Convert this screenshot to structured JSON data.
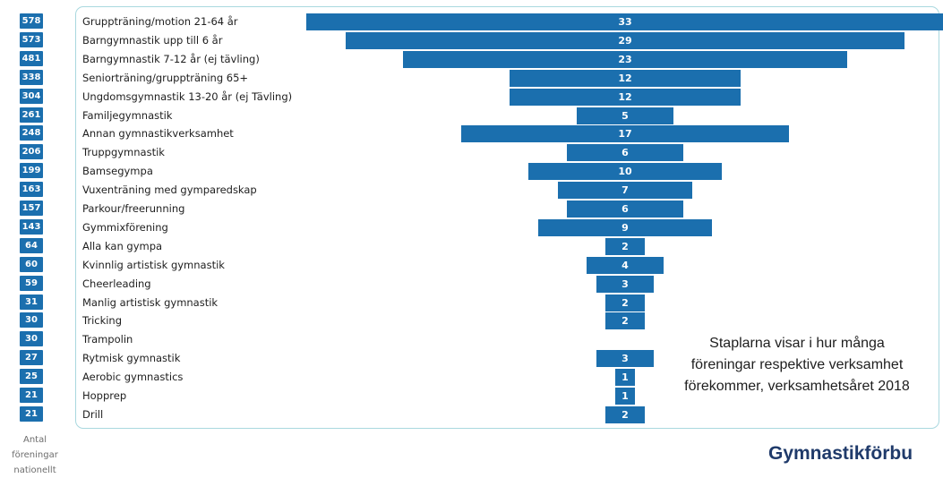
{
  "chart_data": {
    "type": "bar",
    "categories": [
      "Gruppträning/motion 21-64 år",
      "Barngymnastik upp till 6 år",
      "Barngymnastik 7-12 år (ej tävling)",
      "Seniorträning/gruppträning 65+",
      "Ungdomsgymnastik 13-20 år (ej Tävling)",
      "Familjegymnastik",
      "Annan gymnastikverksamhet",
      "Truppgymnastik",
      "Bamsegympa",
      "Vuxenträning med gymparedskap",
      "Parkour/freerunning",
      "Gymmixförening",
      "Alla kan gympa",
      "Kvinnlig artistisk gymnastik",
      "Cheerleading",
      "Manlig artistisk gymnastik",
      "Tricking",
      "Trampolin",
      "Rytmisk gymnastik",
      "Aerobic gymnastics",
      "Hopprep",
      "Drill"
    ],
    "values": [
      33,
      29,
      23,
      12,
      12,
      5,
      17,
      6,
      10,
      7,
      6,
      9,
      2,
      4,
      3,
      2,
      2,
      null,
      3,
      1,
      1,
      2
    ],
    "national_counts": [
      "578",
      "573",
      "481",
      "338",
      "304",
      "261",
      "248",
      "206",
      "199",
      "163",
      "157",
      "143",
      "64",
      "60",
      "59",
      "31",
      "30",
      "30",
      "27",
      "25",
      "21",
      "21"
    ],
    "value_labels": [
      "33",
      "29",
      "23",
      "12",
      "12",
      "5",
      "17",
      "6",
      "10",
      "7",
      "6",
      "9",
      "2",
      "4",
      "3",
      "2",
      "2",
      "",
      "3",
      "1",
      "1",
      "2"
    ],
    "title": "",
    "xlabel": "",
    "ylabel": "",
    "orientation": "horizontal-centered",
    "bar_color": "#1b6fae"
  },
  "caption": "Staplarna visar i hur många föreningar respektive verksamhet förekommer, verksamhetsåret 2018",
  "counts_label": "Antal föreningar nationellt",
  "brand": "Gymnastikförbu"
}
